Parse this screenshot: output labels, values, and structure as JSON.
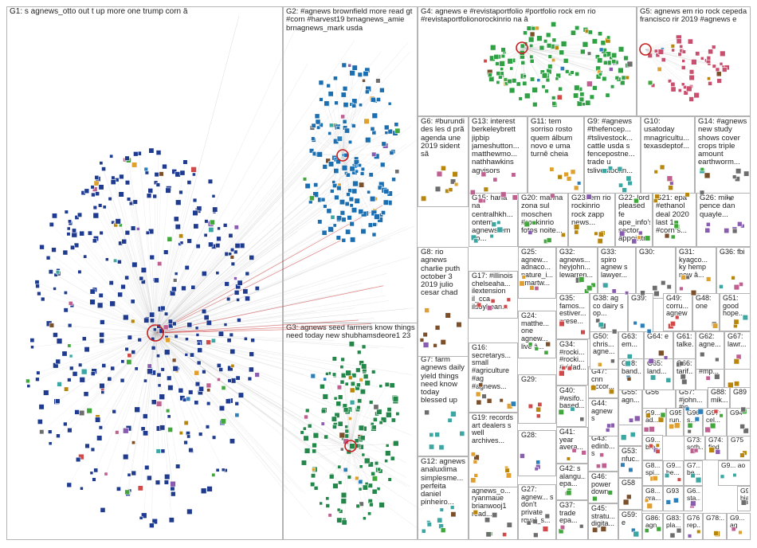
{
  "colors": {
    "background": "#ffffff",
    "panel_border": "#b4b4b4",
    "label_text": "#222222",
    "edge": "#b9b9b9",
    "highlight_edge": "#c81e1e",
    "G1": "#1f3b8f",
    "G2": "#1b6fb0",
    "G3": "#23874a",
    "G4": "#2fa043",
    "G5": "#c8506e"
  },
  "groups": [
    {
      "id": "G1",
      "label": "G1: s agnews_otto out t up more one trump corn â"
    },
    {
      "id": "G2",
      "label": "G2: #agnews brownfield more read gt #corn #harvest19 brnagnews_amie brnagnews_mark usda"
    },
    {
      "id": "G3",
      "label": "G3: agnews seed farmers know things need today new shubhamsdeore1 23"
    },
    {
      "id": "G4",
      "label": "G4: agnews e #revistaportfolio #portfolio rock em rio #revistaportfolionorockinrio na â"
    },
    {
      "id": "G5",
      "label": "G5: agnews em rio rock cepeda francisco rir 2019 #agnews e"
    },
    {
      "id": "G6",
      "label": "G6: #burundi des les d prã agenda une 2019 sident sã"
    },
    {
      "id": "G7",
      "label": "G7: farm agnews daily yield things need know today blessed up"
    },
    {
      "id": "G8",
      "label": "G8: rio agnews charlie puth october 3 2019 julio cesar chad"
    },
    {
      "id": "G9",
      "label": "G9: #agnews #thefencep... #tslivestock... cattle usda s fencepostne... trade u tslivestockn..."
    },
    {
      "id": "G10",
      "label": "G10: usatoday mnagricultu... texasdeptof..."
    },
    {
      "id": "G11",
      "label": "G11: tem sorriso rosto quem álbum novo e uma turnê cheia"
    },
    {
      "id": "G12",
      "label": "G12: agnews analuxlima simplesme... perfeita daniel pinheiro..."
    },
    {
      "id": "G13",
      "label": "G13: interest berkeleybrett jipbip jameshutton... matthewmo... nathhawkins agvisors"
    },
    {
      "id": "G14",
      "label": "G14: #agnews new study shows cover crops triple amount earthworm..."
    },
    {
      "id": "G15",
      "label": "G15: hana na centralhkh... ontem agnews em rio..."
    },
    {
      "id": "G16",
      "label": "G16: secretarys... small #agriculture #ag #agnews..."
    },
    {
      "id": "G17",
      "label": "G17: #illinois chelseaha... ilextension il_cca ilsoybean..."
    },
    {
      "id": "G18",
      "label": "G18: agnews_o... ryanmaue brianwooj1 read..."
    },
    {
      "id": "G19",
      "label": "G19: records art dealers s well archives..."
    },
    {
      "id": "G20",
      "label": "G20: marina zona sul moschen #rockinrio fotos noite..."
    },
    {
      "id": "G21",
      "label": "G21: epa #ethanol deal 2020 last 1 #corn s..."
    },
    {
      "id": "G22",
      "label": "G22: lord pleased fe ape_info's sector appointm..."
    },
    {
      "id": "G23",
      "label": "G23: em rio rockinrio rock zapp news..."
    },
    {
      "id": "G24",
      "label": "G24: matthe... one agnew... live â..."
    },
    {
      "id": "G25",
      "label": "G25: agnew... adnaco... nature_i... smartw..."
    },
    {
      "id": "G26",
      "label": "G26: mike pence dan quayle..."
    },
    {
      "id": "G27",
      "label": "G27: agnew... s don't private royal_s..."
    },
    {
      "id": "G28",
      "label": "G28:"
    },
    {
      "id": "G29",
      "label": "G29:"
    },
    {
      "id": "G30",
      "label": "G30:"
    },
    {
      "id": "G31",
      "label": "G31: kyagco... ky hemp new â..."
    },
    {
      "id": "G32",
      "label": "G32: agnews... heyjohn... lewarren..."
    },
    {
      "id": "G33",
      "label": "G33: spiro agnew s lawyer..."
    },
    {
      "id": "G34",
      "label": "G34: #rocki... #rocki... #vidad..."
    },
    {
      "id": "G35",
      "label": "G35: famos... estiver... prese..."
    },
    {
      "id": "G36",
      "label": "G36: fbi"
    },
    {
      "id": "G37",
      "label": "G37: trade epa..."
    },
    {
      "id": "G38",
      "label": "G38: ag co dairy s op..."
    },
    {
      "id": "G39",
      "label": "G39:"
    },
    {
      "id": "G40",
      "label": "G40: #wsifo... based..."
    },
    {
      "id": "G41",
      "label": "G41: year avera..."
    },
    {
      "id": "G42",
      "label": "G42: s alangu... epa..."
    },
    {
      "id": "G43",
      "label": "G43: edinb... s"
    },
    {
      "id": "G44",
      "label": "G44: agnew s"
    },
    {
      "id": "G45",
      "label": "G45: stratu... digita..."
    },
    {
      "id": "G46",
      "label": "G46: power down"
    },
    {
      "id": "G47",
      "label": "G47: cnn accor..."
    },
    {
      "id": "G48",
      "label": "G48: one"
    },
    {
      "id": "G49",
      "label": "G49: corru... agnew"
    },
    {
      "id": "G50",
      "label": "G50: chris... agne..."
    },
    {
      "id": "G51",
      "label": "G51: good hope..."
    },
    {
      "id": "G52",
      "label": "G52:"
    },
    {
      "id": "G53",
      "label": "G53: nfuc..."
    },
    {
      "id": "G54",
      "label": "G54"
    },
    {
      "id": "G55",
      "label": "G55: agn..."
    },
    {
      "id": "G56",
      "label": "G56"
    },
    {
      "id": "G57",
      "label": "G57: #john... #jo..."
    },
    {
      "id": "G58",
      "label": "G58"
    },
    {
      "id": "G59",
      "label": "G59: e"
    },
    {
      "id": "G60",
      "label": "G60: #mp..."
    },
    {
      "id": "G61",
      "label": "G61: talke..."
    },
    {
      "id": "G62",
      "label": "G62: agne..."
    },
    {
      "id": "G63",
      "label": "G63: em..."
    },
    {
      "id": "G64",
      "label": "G64: e"
    },
    {
      "id": "G65",
      "label": "G65: land..."
    },
    {
      "id": "G66",
      "label": "G66: tarif..."
    },
    {
      "id": "G67",
      "label": "G67: lawr..."
    },
    {
      "id": "G68",
      "label": "G68: band..."
    },
    {
      "id": "G73",
      "label": "G73: soth..."
    },
    {
      "id": "G74",
      "label": "G74: find"
    },
    {
      "id": "G75",
      "label": "G75"
    },
    {
      "id": "G76",
      "label": "G76: rep..."
    },
    {
      "id": "G78",
      "label": "G78:..."
    },
    {
      "id": "G83",
      "label": "G83: pla..."
    },
    {
      "id": "G86",
      "label": "G86: agn..."
    },
    {
      "id": "G87",
      "label": "G87"
    },
    {
      "id": "G88",
      "label": "G88: mik..."
    },
    {
      "id": "G89",
      "label": "G89"
    },
    {
      "id": "G93",
      "label": "G93"
    },
    {
      "id": "G94",
      "label": "G94"
    },
    {
      "id": "G95",
      "label": "G95: run..."
    },
    {
      "id": "G96",
      "label": "G96: s..."
    },
    {
      "id": "G97",
      "label": "G97: cel..."
    },
    {
      "id": "G9a",
      "label": "G9... ad..."
    },
    {
      "id": "G9b",
      "label": "G9... bre..."
    },
    {
      "id": "G8a",
      "label": "G8... spi..."
    },
    {
      "id": "G8b",
      "label": "G8... gra..."
    },
    {
      "id": "G9c",
      "label": "G9... be..."
    },
    {
      "id": "G7a",
      "label": "G7... be..."
    },
    {
      "id": "G6a",
      "label": "G6... sta..."
    },
    {
      "id": "G9d",
      "label": "G9... ao"
    },
    {
      "id": "G9e",
      "label": "G9... bia"
    },
    {
      "id": "G9f",
      "label": "G9... ag"
    }
  ]
}
